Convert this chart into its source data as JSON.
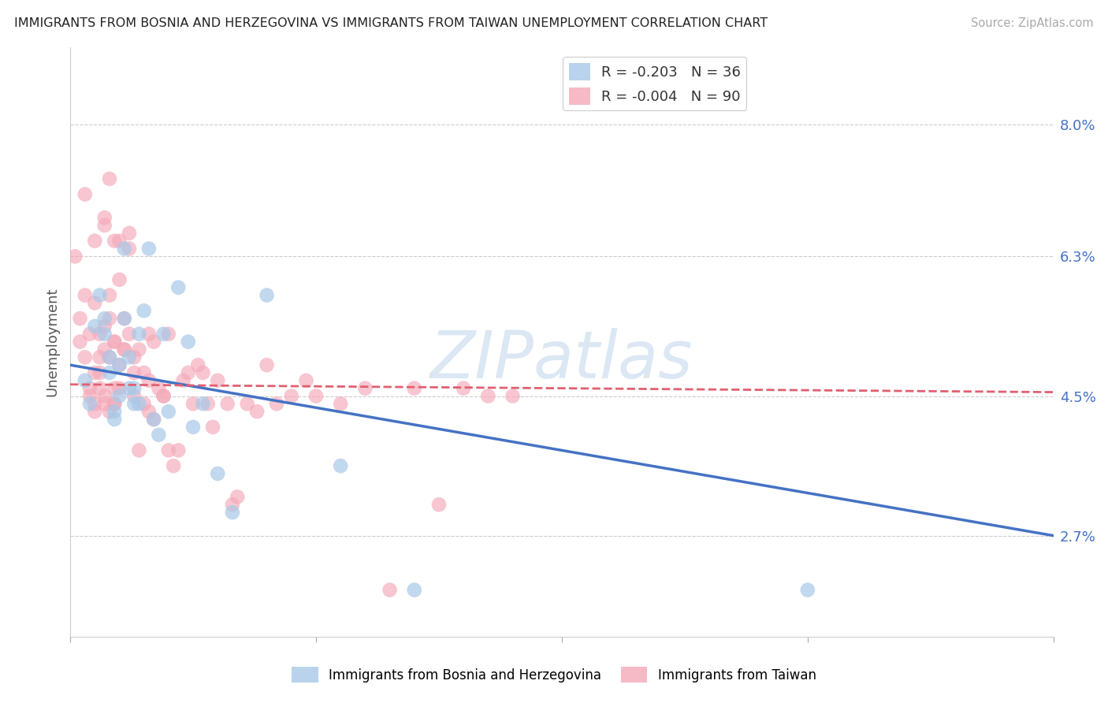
{
  "title": "IMMIGRANTS FROM BOSNIA AND HERZEGOVINA VS IMMIGRANTS FROM TAIWAN UNEMPLOYMENT CORRELATION CHART",
  "source": "Source: ZipAtlas.com",
  "ylabel": "Unemployment",
  "ytick_labels": [
    "8.0%",
    "6.3%",
    "4.5%",
    "2.7%"
  ],
  "ytick_values": [
    0.08,
    0.063,
    0.045,
    0.027
  ],
  "xlim": [
    0.0,
    0.2
  ],
  "ylim": [
    0.014,
    0.09
  ],
  "watermark": "ZIPatlas",
  "legend_r_bosnia": "R = -0.203",
  "legend_n_bosnia": "N = 36",
  "legend_r_taiwan": "R = -0.004",
  "legend_n_taiwan": "N = 90",
  "bosnia_color": "#a8c8e8",
  "taiwan_color": "#f4a8b8",
  "bosnia_line_color": "#4472c4",
  "taiwan_line_color": "#e06070",
  "background_color": "#ffffff",
  "grid_color": "#cccccc",
  "bosnia_scatter": [
    [
      0.003,
      0.047
    ],
    [
      0.004,
      0.044
    ],
    [
      0.005,
      0.054
    ],
    [
      0.006,
      0.058
    ],
    [
      0.007,
      0.055
    ],
    [
      0.007,
      0.053
    ],
    [
      0.008,
      0.048
    ],
    [
      0.008,
      0.05
    ],
    [
      0.009,
      0.043
    ],
    [
      0.009,
      0.042
    ],
    [
      0.01,
      0.045
    ],
    [
      0.01,
      0.049
    ],
    [
      0.011,
      0.055
    ],
    [
      0.011,
      0.064
    ],
    [
      0.012,
      0.05
    ],
    [
      0.012,
      0.046
    ],
    [
      0.013,
      0.044
    ],
    [
      0.013,
      0.046
    ],
    [
      0.014,
      0.053
    ],
    [
      0.014,
      0.044
    ],
    [
      0.015,
      0.056
    ],
    [
      0.016,
      0.064
    ],
    [
      0.017,
      0.042
    ],
    [
      0.018,
      0.04
    ],
    [
      0.019,
      0.053
    ],
    [
      0.02,
      0.043
    ],
    [
      0.022,
      0.059
    ],
    [
      0.024,
      0.052
    ],
    [
      0.025,
      0.041
    ],
    [
      0.027,
      0.044
    ],
    [
      0.03,
      0.035
    ],
    [
      0.033,
      0.03
    ],
    [
      0.04,
      0.058
    ],
    [
      0.055,
      0.036
    ],
    [
      0.07,
      0.02
    ],
    [
      0.15,
      0.02
    ]
  ],
  "taiwan_scatter": [
    [
      0.001,
      0.063
    ],
    [
      0.002,
      0.052
    ],
    [
      0.002,
      0.055
    ],
    [
      0.003,
      0.05
    ],
    [
      0.003,
      0.058
    ],
    [
      0.003,
      0.071
    ],
    [
      0.004,
      0.045
    ],
    [
      0.004,
      0.053
    ],
    [
      0.004,
      0.046
    ],
    [
      0.005,
      0.057
    ],
    [
      0.005,
      0.043
    ],
    [
      0.005,
      0.065
    ],
    [
      0.005,
      0.048
    ],
    [
      0.005,
      0.044
    ],
    [
      0.006,
      0.05
    ],
    [
      0.006,
      0.046
    ],
    [
      0.006,
      0.053
    ],
    [
      0.006,
      0.048
    ],
    [
      0.007,
      0.068
    ],
    [
      0.007,
      0.045
    ],
    [
      0.007,
      0.054
    ],
    [
      0.007,
      0.044
    ],
    [
      0.007,
      0.067
    ],
    [
      0.007,
      0.051
    ],
    [
      0.008,
      0.055
    ],
    [
      0.008,
      0.043
    ],
    [
      0.008,
      0.05
    ],
    [
      0.008,
      0.073
    ],
    [
      0.008,
      0.058
    ],
    [
      0.009,
      0.052
    ],
    [
      0.009,
      0.052
    ],
    [
      0.009,
      0.065
    ],
    [
      0.009,
      0.046
    ],
    [
      0.009,
      0.044
    ],
    [
      0.009,
      0.044
    ],
    [
      0.01,
      0.049
    ],
    [
      0.01,
      0.065
    ],
    [
      0.01,
      0.06
    ],
    [
      0.01,
      0.046
    ],
    [
      0.011,
      0.051
    ],
    [
      0.011,
      0.051
    ],
    [
      0.011,
      0.055
    ],
    [
      0.012,
      0.053
    ],
    [
      0.012,
      0.066
    ],
    [
      0.012,
      0.064
    ],
    [
      0.013,
      0.05
    ],
    [
      0.013,
      0.048
    ],
    [
      0.013,
      0.045
    ],
    [
      0.014,
      0.051
    ],
    [
      0.014,
      0.038
    ],
    [
      0.015,
      0.048
    ],
    [
      0.015,
      0.044
    ],
    [
      0.016,
      0.047
    ],
    [
      0.016,
      0.043
    ],
    [
      0.016,
      0.053
    ],
    [
      0.017,
      0.042
    ],
    [
      0.017,
      0.052
    ],
    [
      0.018,
      0.046
    ],
    [
      0.019,
      0.045
    ],
    [
      0.019,
      0.045
    ],
    [
      0.02,
      0.053
    ],
    [
      0.02,
      0.038
    ],
    [
      0.021,
      0.036
    ],
    [
      0.022,
      0.038
    ],
    [
      0.023,
      0.047
    ],
    [
      0.024,
      0.048
    ],
    [
      0.025,
      0.044
    ],
    [
      0.026,
      0.049
    ],
    [
      0.027,
      0.048
    ],
    [
      0.028,
      0.044
    ],
    [
      0.029,
      0.041
    ],
    [
      0.03,
      0.047
    ],
    [
      0.032,
      0.044
    ],
    [
      0.033,
      0.031
    ],
    [
      0.034,
      0.032
    ],
    [
      0.036,
      0.044
    ],
    [
      0.038,
      0.043
    ],
    [
      0.04,
      0.049
    ],
    [
      0.042,
      0.044
    ],
    [
      0.045,
      0.045
    ],
    [
      0.048,
      0.047
    ],
    [
      0.05,
      0.045
    ],
    [
      0.055,
      0.044
    ],
    [
      0.06,
      0.046
    ],
    [
      0.065,
      0.02
    ],
    [
      0.07,
      0.046
    ],
    [
      0.075,
      0.031
    ],
    [
      0.08,
      0.046
    ],
    [
      0.085,
      0.045
    ],
    [
      0.09,
      0.045
    ]
  ],
  "bosnia_line": {
    "x0": 0.0,
    "y0": 0.049,
    "x1": 0.2,
    "y1": 0.027
  },
  "taiwan_line": {
    "x0": 0.0,
    "y0": 0.0465,
    "x1": 0.2,
    "y1": 0.0455
  }
}
